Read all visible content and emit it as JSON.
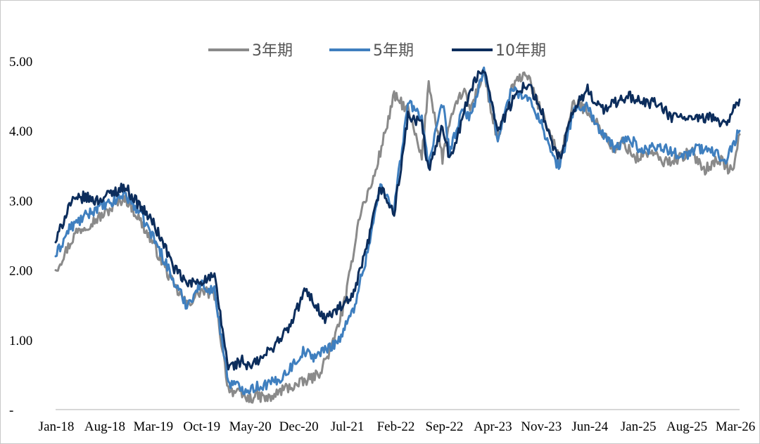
{
  "chart_data": {
    "type": "line",
    "title": "",
    "xlabel": "",
    "ylabel": "",
    "ylim": [
      0,
      5.0
    ],
    "y_ticks": [
      {
        "value": 0,
        "label": "-"
      },
      {
        "value": 1,
        "label": "1.00"
      },
      {
        "value": 2,
        "label": "2.00"
      },
      {
        "value": 3,
        "label": "3.00"
      },
      {
        "value": 4,
        "label": "4.00"
      },
      {
        "value": 5,
        "label": "5.00"
      }
    ],
    "x_ticks": [
      "Jan-18",
      "Aug-18",
      "Mar-19",
      "Oct-19",
      "May-20",
      "Dec-20",
      "Jul-21",
      "Feb-22",
      "Sep-22",
      "Apr-23",
      "Nov-23",
      "Jun-24",
      "Jan-25",
      "Aug-25",
      "Mar-26"
    ],
    "x_range_months": [
      0,
      99
    ],
    "legend": "top-center",
    "series": [
      {
        "name": "3年期",
        "color": "#8a8a8a",
        "x": [
          0,
          3,
          7,
          10,
          12,
          14,
          16,
          17,
          19,
          21,
          23,
          25,
          27,
          28,
          29,
          31,
          33,
          35,
          38,
          40,
          42,
          44,
          46,
          49,
          51,
          53,
          54,
          56,
          57,
          59,
          60,
          62,
          63,
          64,
          66,
          68,
          71,
          73,
          75,
          77,
          79,
          81,
          82,
          84,
          86,
          88,
          90,
          92,
          94,
          96,
          98,
          99
        ],
        "values": [
          2.0,
          2.55,
          2.8,
          3.05,
          2.75,
          2.4,
          2.0,
          1.8,
          1.5,
          1.7,
          1.65,
          0.3,
          0.2,
          0.15,
          0.2,
          0.15,
          0.3,
          0.35,
          0.5,
          0.9,
          1.6,
          2.8,
          3.3,
          4.5,
          4.3,
          3.6,
          4.7,
          3.6,
          4.1,
          4.6,
          4.3,
          4.85,
          4.3,
          3.85,
          4.6,
          4.85,
          4.1,
          3.6,
          4.4,
          4.3,
          4.0,
          3.7,
          3.85,
          3.6,
          3.7,
          3.55,
          3.6,
          3.7,
          3.45,
          3.6,
          3.4,
          3.95
        ]
      },
      {
        "name": "5年期",
        "color": "#3f7fbf",
        "x": [
          0,
          2,
          4,
          6,
          8,
          10,
          12,
          14,
          16,
          17,
          19,
          21,
          23,
          25,
          27,
          28,
          30,
          32,
          34,
          36,
          37,
          39,
          41,
          43,
          45,
          47,
          49,
          51,
          53,
          54,
          56,
          57,
          59,
          60,
          62,
          63,
          64,
          66,
          68,
          70,
          72,
          73,
          75,
          77,
          79,
          81,
          83,
          85,
          87,
          89,
          91,
          93,
          95,
          97,
          99
        ],
        "values": [
          2.2,
          2.6,
          2.75,
          2.9,
          2.95,
          3.1,
          2.85,
          2.5,
          2.1,
          1.85,
          1.5,
          1.8,
          1.7,
          0.4,
          0.3,
          0.3,
          0.35,
          0.4,
          0.6,
          0.85,
          0.75,
          0.85,
          1.0,
          1.4,
          2.2,
          3.2,
          2.9,
          4.4,
          4.2,
          3.5,
          4.4,
          3.7,
          4.3,
          4.2,
          4.85,
          4.4,
          3.9,
          4.6,
          4.5,
          4.2,
          3.6,
          3.5,
          4.3,
          4.35,
          3.95,
          3.75,
          3.9,
          3.7,
          3.8,
          3.7,
          3.65,
          3.75,
          3.7,
          3.6,
          4.0
        ]
      },
      {
        "name": "10年期",
        "color": "#0c2d5c",
        "x": [
          0,
          2,
          4,
          6,
          8,
          10,
          12,
          14,
          16,
          17,
          19,
          21,
          23,
          25,
          27,
          28,
          30,
          31,
          34,
          36,
          37,
          39,
          41,
          43,
          45,
          47,
          49,
          51,
          53,
          54,
          56,
          57,
          59,
          60,
          62,
          63,
          64,
          66,
          68,
          70,
          72,
          73,
          75,
          77,
          79,
          81,
          83,
          85,
          87,
          89,
          91,
          93,
          95,
          97,
          99
        ],
        "values": [
          2.4,
          2.95,
          3.05,
          3.0,
          3.1,
          3.2,
          2.95,
          2.7,
          2.3,
          2.05,
          1.8,
          1.85,
          1.9,
          0.6,
          0.7,
          0.6,
          0.75,
          0.85,
          1.2,
          1.7,
          1.6,
          1.3,
          1.45,
          1.6,
          2.3,
          3.2,
          2.8,
          4.2,
          4.1,
          3.4,
          4.1,
          3.6,
          4.2,
          4.6,
          4.9,
          4.5,
          4.0,
          4.4,
          4.7,
          4.4,
          3.75,
          3.6,
          4.3,
          4.6,
          4.3,
          4.4,
          4.5,
          4.4,
          4.4,
          4.2,
          4.2,
          4.15,
          4.2,
          4.1,
          4.45
        ]
      }
    ]
  }
}
